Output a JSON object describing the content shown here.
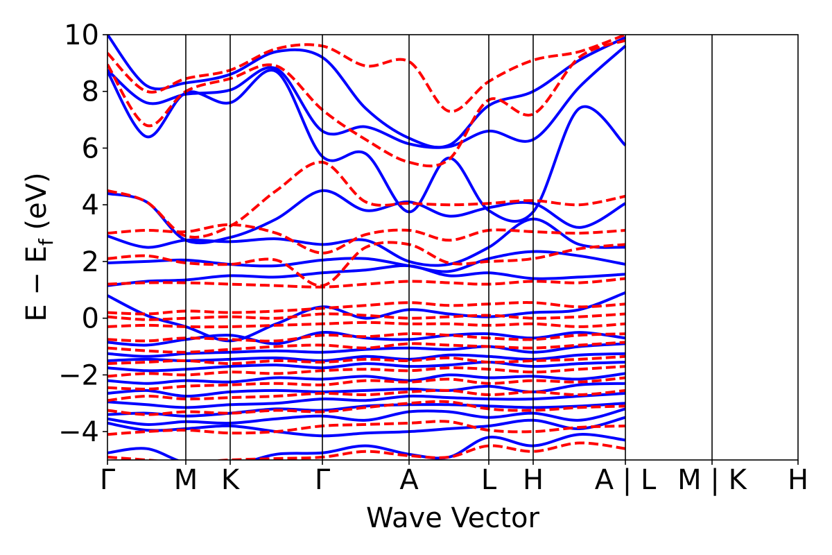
{
  "chart_data": {
    "type": "line",
    "xlabel": "Wave Vector",
    "ylabel": "E − E",
    "ylabel_subscript": "f",
    "ylabel_unit": " (eV)",
    "ylim": [
      -5,
      10
    ],
    "yticks": [
      -4,
      -2,
      0,
      2,
      4,
      6,
      8,
      10
    ],
    "ytick_labels": [
      "−4",
      "−2",
      "0",
      "2",
      "4",
      "6",
      "8",
      "10"
    ],
    "path_labels": [
      "Γ",
      "M",
      "K",
      "Γ",
      "A",
      "L",
      "H",
      "A|L",
      "M|K",
      "H"
    ],
    "path_label_display": [
      "Γ",
      "M",
      "K",
      "Γ",
      "A",
      "L",
      "H",
      "A | L",
      "M | K",
      "H"
    ],
    "style": {
      "blue": "#0000ff",
      "red": "#ff0000",
      "red_dash": "dashed"
    },
    "series": [
      {
        "style": "blue-solid",
        "bands": [
          [
            -4.75,
            -4.6,
            -5.1,
            -5.2,
            -4.8,
            -4.75,
            -4.5,
            -4.8,
            -4.9,
            -4.2,
            -4.5,
            -4.1,
            -4.3
          ],
          [
            -3.7,
            -3.95,
            -3.9,
            -3.8,
            -4.0,
            -4.15,
            -4.05,
            -4.0,
            -3.9,
            -3.8,
            -3.6,
            -3.9,
            -3.5
          ],
          [
            -3.55,
            -3.75,
            -3.65,
            -3.7,
            -3.55,
            -3.45,
            -3.6,
            -3.3,
            -3.3,
            -3.5,
            -3.35,
            -3.6,
            -3.2
          ],
          [
            -3.4,
            -3.35,
            -3.45,
            -3.35,
            -3.2,
            -3.25,
            -3.1,
            -3.05,
            -3.05,
            -3.1,
            -3.15,
            -3.1,
            -3.0
          ],
          [
            -2.95,
            -3.05,
            -3.15,
            -3.05,
            -3.0,
            -2.85,
            -2.9,
            -2.75,
            -2.8,
            -2.85,
            -2.85,
            -2.75,
            -2.65
          ],
          [
            -2.65,
            -2.55,
            -2.75,
            -2.6,
            -2.55,
            -2.6,
            -2.55,
            -2.5,
            -2.55,
            -2.4,
            -2.6,
            -2.35,
            -2.3
          ],
          [
            -2.2,
            -2.3,
            -2.2,
            -2.25,
            -2.1,
            -2.15,
            -2.05,
            -2.2,
            -2.0,
            -2.1,
            -2.05,
            -2.15,
            -1.95
          ],
          [
            -1.75,
            -1.85,
            -1.8,
            -1.7,
            -1.65,
            -1.75,
            -1.6,
            -1.7,
            -1.65,
            -1.55,
            -1.7,
            -1.6,
            -1.55
          ],
          [
            -1.5,
            -1.45,
            -1.5,
            -1.45,
            -1.4,
            -1.5,
            -1.35,
            -1.45,
            -1.3,
            -1.35,
            -1.45,
            -1.3,
            -1.25
          ],
          [
            -1.25,
            -1.35,
            -1.25,
            -1.2,
            -1.15,
            -1.2,
            -1.1,
            -1.05,
            -1.1,
            -1.0,
            -1.2,
            -1.0,
            -0.9
          ],
          [
            -0.85,
            -0.95,
            -0.75,
            -0.6,
            -0.9,
            -0.5,
            -0.7,
            -0.75,
            -0.6,
            -0.55,
            -0.7,
            -0.5,
            -0.7
          ],
          [
            0.8,
            0.1,
            -0.3,
            -0.8,
            -0.2,
            0.4,
            0.0,
            0.3,
            0.15,
            0.05,
            0.2,
            0.3,
            0.9
          ],
          [
            1.15,
            1.3,
            1.35,
            1.5,
            1.45,
            1.6,
            1.7,
            1.85,
            1.5,
            1.6,
            1.4,
            1.45,
            1.55
          ],
          [
            1.95,
            2.0,
            2.05,
            1.9,
            1.85,
            2.05,
            2.1,
            1.85,
            1.65,
            2.1,
            2.35,
            2.2,
            1.9
          ],
          [
            2.9,
            2.5,
            2.75,
            2.7,
            2.8,
            2.6,
            2.75,
            2.0,
            1.9,
            2.5,
            3.5,
            2.6,
            2.5
          ],
          [
            4.4,
            4.1,
            2.75,
            2.85,
            3.5,
            4.5,
            3.8,
            4.1,
            3.6,
            3.9,
            4.05,
            3.2,
            4.05
          ],
          [
            8.7,
            6.4,
            7.95,
            7.6,
            8.7,
            5.7,
            5.8,
            3.75,
            5.65,
            3.8,
            3.75,
            7.4,
            6.1
          ],
          [
            8.75,
            7.6,
            7.9,
            8.05,
            8.8,
            6.6,
            6.75,
            6.15,
            6.05,
            6.6,
            6.3,
            8.15,
            9.6
          ],
          [
            10.0,
            8.2,
            8.3,
            8.6,
            9.4,
            9.2,
            7.4,
            6.35,
            6.1,
            7.5,
            8.0,
            9.1,
            9.9
          ]
        ]
      },
      {
        "style": "red-dashed",
        "bands": [
          [
            -4.9,
            -5.0,
            -5.1,
            -5.0,
            -4.95,
            -4.9,
            -4.7,
            -4.85,
            -4.9,
            -4.5,
            -4.7,
            -4.4,
            -4.6
          ],
          [
            -4.1,
            -4.0,
            -3.95,
            -4.05,
            -4.0,
            -3.8,
            -3.75,
            -3.7,
            -3.65,
            -3.95,
            -4.0,
            -3.85,
            -3.8
          ],
          [
            -3.25,
            -3.4,
            -3.3,
            -3.35,
            -3.25,
            -3.3,
            -3.15,
            -3.0,
            -2.95,
            -3.2,
            -3.25,
            -3.15,
            -3.1
          ],
          [
            -2.9,
            -2.75,
            -2.85,
            -2.8,
            -2.75,
            -2.65,
            -2.7,
            -2.6,
            -2.55,
            -2.7,
            -2.6,
            -2.7,
            -2.55
          ],
          [
            -2.45,
            -2.5,
            -2.4,
            -2.35,
            -2.3,
            -2.35,
            -2.2,
            -2.25,
            -2.15,
            -2.3,
            -2.2,
            -2.25,
            -2.1
          ],
          [
            -2.05,
            -1.95,
            -2.0,
            -1.9,
            -1.95,
            -1.85,
            -1.8,
            -1.85,
            -1.75,
            -1.8,
            -1.9,
            -1.8,
            -1.7
          ],
          [
            -1.6,
            -1.55,
            -1.5,
            -1.6,
            -1.5,
            -1.55,
            -1.45,
            -1.5,
            -1.4,
            -1.55,
            -1.5,
            -1.45,
            -1.35
          ],
          [
            -1.05,
            -1.15,
            -1.2,
            -1.1,
            -1.0,
            -0.95,
            -1.05,
            -0.9,
            -0.95,
            -1.0,
            -1.05,
            -0.95,
            -0.85
          ],
          [
            -0.75,
            -0.8,
            -0.7,
            -0.75,
            -0.8,
            -0.6,
            -0.65,
            -0.55,
            -0.6,
            -0.7,
            -0.75,
            -0.6,
            -0.55
          ],
          [
            -0.3,
            -0.25,
            -0.3,
            -0.3,
            -0.25,
            -0.2,
            -0.15,
            -0.2,
            -0.2,
            -0.25,
            -0.2,
            -0.3,
            -0.2
          ],
          [
            0.05,
            -0.05,
            0.0,
            0.05,
            0.0,
            0.15,
            0.1,
            0.0,
            0.05,
            0.1,
            0.0,
            0.05,
            0.15
          ],
          [
            0.2,
            0.15,
            0.25,
            0.2,
            0.25,
            0.35,
            0.45,
            0.55,
            0.45,
            0.5,
            0.55,
            0.4,
            0.5
          ],
          [
            1.2,
            1.25,
            1.25,
            1.2,
            1.15,
            1.1,
            1.2,
            1.3,
            1.25,
            1.2,
            1.3,
            1.25,
            1.4
          ],
          [
            2.1,
            2.2,
            1.95,
            1.9,
            2.05,
            1.15,
            2.5,
            2.6,
            1.95,
            2.0,
            2.1,
            2.45,
            2.6
          ],
          [
            3.0,
            3.1,
            3.05,
            3.3,
            3.0,
            2.3,
            2.95,
            3.1,
            2.75,
            3.1,
            3.05,
            3.0,
            3.1
          ],
          [
            4.5,
            4.1,
            2.9,
            3.25,
            4.5,
            5.5,
            4.1,
            4.05,
            4.0,
            4.05,
            4.15,
            4.0,
            4.3
          ],
          [
            8.95,
            6.8,
            8.0,
            8.45,
            8.9,
            7.35,
            6.3,
            5.5,
            5.6,
            7.7,
            7.2,
            9.2,
            9.8
          ],
          [
            9.35,
            8.0,
            8.45,
            8.75,
            9.5,
            9.6,
            8.9,
            9.05,
            7.3,
            8.35,
            9.1,
            9.4,
            10.0
          ]
        ]
      }
    ]
  }
}
